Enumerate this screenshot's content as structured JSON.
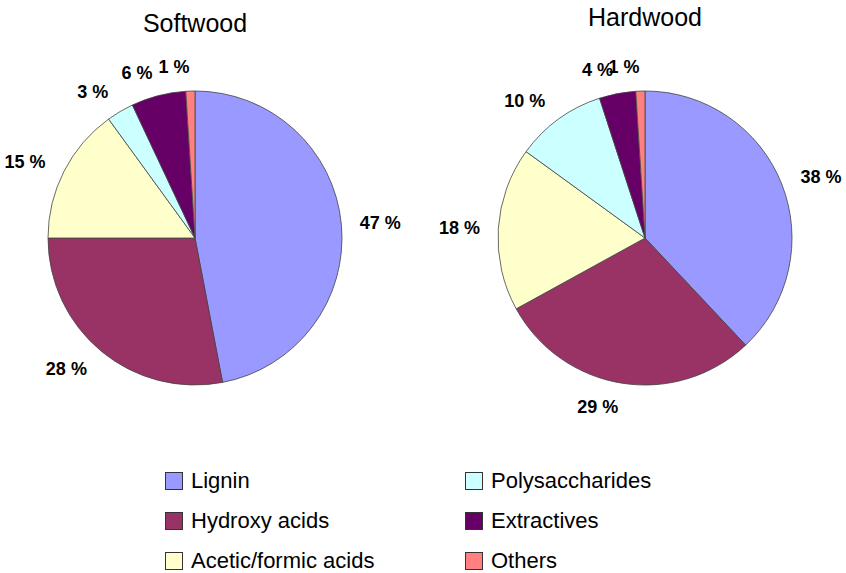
{
  "chart_data": [
    {
      "type": "pie",
      "title": "Softwood",
      "categories": [
        "Lignin",
        "Hydroxy acids",
        "Acetic/formic acids",
        "Polysaccharides",
        "Extractives",
        "Others"
      ],
      "values": [
        47,
        28,
        15,
        3,
        6,
        1
      ],
      "value_labels": [
        "47 %",
        "28 %",
        "15 %",
        "3 %",
        "6 %",
        "1 %"
      ],
      "colors": [
        "#9999ff",
        "#993366",
        "#ffffcc",
        "#ccffff",
        "#660066",
        "#ff8080"
      ],
      "data_labels": true,
      "legend": "bottom"
    },
    {
      "type": "pie",
      "title": "Hardwood",
      "categories": [
        "Lignin",
        "Hydroxy acids",
        "Acetic/formic acids",
        "Polysaccharides",
        "Extractives",
        "Others"
      ],
      "values": [
        38,
        29,
        18,
        10,
        4,
        1
      ],
      "value_labels": [
        "38 %",
        "29 %",
        "18 %",
        "10 %",
        "4 %",
        "1 %"
      ],
      "colors": [
        "#9999ff",
        "#993366",
        "#ffffcc",
        "#ccffff",
        "#660066",
        "#ff8080"
      ],
      "data_labels": true,
      "legend": "bottom"
    }
  ]
}
